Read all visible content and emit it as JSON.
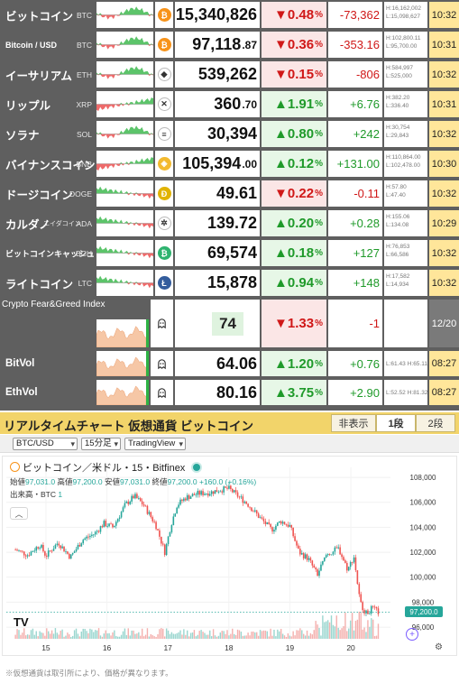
{
  "ticker": [
    {
      "name": "ビットコイン",
      "symbol": "BTC",
      "icon": "bitcoin-icon",
      "icon_color": "#f7931a",
      "icon_glyph": "₿",
      "price": "15,340,826",
      "price_dec": "",
      "dir": "down",
      "arrow": "▼",
      "pct": "0.48",
      "chg": "-73,362",
      "high": "H:16,162,002",
      "low": "L:15,098,627",
      "time": "10:32",
      "spark": "mixed"
    },
    {
      "name": "Bitcoin / USD",
      "symbol": "BTC",
      "icon": "bitcoin-icon",
      "icon_color": "#f7931a",
      "icon_glyph": "₿",
      "price": "97,118",
      "price_dec": ".87",
      "dir": "down",
      "arrow": "▼",
      "pct": "0.36",
      "chg": "-353.16",
      "high": "H:102,800.11",
      "low": "L:95,700.00",
      "time": "10:31",
      "spark": "mixed"
    },
    {
      "name": "イーサリアム",
      "symbol": "ETH",
      "icon": "ethereum-icon",
      "icon_color": "#ffffff",
      "icon_glyph": "◆",
      "price": "539,262",
      "price_dec": "",
      "dir": "down",
      "arrow": "▼",
      "pct": "0.15",
      "chg": "-806",
      "high": "H:584,997",
      "low": "L:525,000",
      "time": "10:32",
      "spark": "mixed"
    },
    {
      "name": "リップル",
      "symbol": "XRP",
      "icon": "xrp-icon",
      "icon_color": "#ffffff",
      "icon_glyph": "✕",
      "price": "360",
      "price_dec": ".70",
      "dir": "up",
      "arrow": "▲",
      "pct": "1.91",
      "chg": "+6.76",
      "high": "H:382.20",
      "low": "L:336.40",
      "time": "10:31",
      "spark": "up"
    },
    {
      "name": "ソラナ",
      "symbol": "SOL",
      "icon": "solana-icon",
      "icon_color": "#ffffff",
      "icon_glyph": "≡",
      "price": "30,394",
      "price_dec": "",
      "dir": "up",
      "arrow": "▲",
      "pct": "0.80",
      "chg": "+242",
      "high": "H:30,754",
      "low": "L:29,843",
      "time": "10:32",
      "spark": "mixed"
    },
    {
      "name": "バイナンスコイン",
      "symbol": "BNB",
      "icon": "bnb-icon",
      "icon_color": "#f3ba2f",
      "icon_glyph": "◈",
      "price": "105,394",
      "price_dec": ".00",
      "dir": "up",
      "arrow": "▲",
      "pct": "0.12",
      "chg": "+131.00",
      "high": "H:110,864.00",
      "low": "L:102,478.00",
      "time": "10:30",
      "spark": "up"
    },
    {
      "name": "ドージコイン",
      "symbol": "DOGE",
      "icon": "dogecoin-icon",
      "icon_color": "#e1b303",
      "icon_glyph": "Ð",
      "price": "49.61",
      "price_dec": "",
      "dir": "down",
      "arrow": "▼",
      "pct": "0.22",
      "chg": "-0.11",
      "high": "H:57.80",
      "low": "L:47.40",
      "time": "10:32",
      "spark": "down"
    },
    {
      "name": "カルダノ",
      "name_small": "エイダコイン",
      "symbol": "ADA",
      "icon": "cardano-icon",
      "icon_color": "#ffffff",
      "icon_glyph": "✲",
      "price": "139.72",
      "price_dec": "",
      "dir": "up",
      "arrow": "▲",
      "pct": "0.20",
      "chg": "+0.28",
      "high": "H:155.06",
      "low": "L:134.08",
      "time": "10:29",
      "spark": "down"
    },
    {
      "name": "ビットコインキャッシュ",
      "symbol": "BCH",
      "icon": "bitcoin-cash-icon",
      "icon_color": "#2fb36f",
      "icon_glyph": "₿",
      "price": "69,574",
      "price_dec": "",
      "dir": "up",
      "arrow": "▲",
      "pct": "0.18",
      "chg": "+127",
      "high": "H:76,853",
      "low": "L:66,586",
      "time": "10:32",
      "spark": "down"
    },
    {
      "name": "ライトコイン",
      "symbol": "LTC",
      "icon": "litecoin-icon",
      "icon_color": "#345d9d",
      "icon_glyph": "Ł",
      "price": "15,878",
      "price_dec": "",
      "dir": "up",
      "arrow": "▲",
      "pct": "0.94",
      "chg": "+148",
      "high": "H:17,582",
      "low": "L:14,934",
      "time": "10:32",
      "spark": "down"
    }
  ],
  "fear_greed": {
    "label": "Crypto Fear&Greed Index",
    "value": "74",
    "arrow": "▼",
    "pct": "1.33",
    "chg": "-1",
    "date": "12/20"
  },
  "vols": [
    {
      "label": "BitVol",
      "value": "64.06",
      "arrow": "▲",
      "pct": "1.20",
      "chg": "+0.76",
      "high": "H:65.11",
      "low": "L:61.43",
      "time": "08:27"
    },
    {
      "label": "EthVol",
      "value": "80.16",
      "arrow": "▲",
      "pct": "3.75",
      "chg": "+2.90",
      "high": "H:81.32",
      "low": "L:52.52",
      "time": "08:27"
    }
  ],
  "pct_unit": "%",
  "panel": {
    "title": "リアルタイムチャート 仮想通貨 ビットコイン",
    "btn_hide": "非表示",
    "btn_1": "1段",
    "btn_2": "2段",
    "sel_pair": "BTC/USD",
    "sel_interval": "15分足",
    "sel_provider": "TradingView"
  },
  "chart": {
    "legend_title": "ビットコイン／米ドル・15・Bitfinex",
    "ohlc_labels": {
      "o": "始値",
      "h": "高値",
      "l": "安値",
      "c": "終値"
    },
    "ohlc": {
      "o": "97,031.0",
      "h": "97,200.0",
      "l": "97,031.0",
      "c": "97,200.0",
      "chg": "+160.0 (+0.16%)"
    },
    "volume_label": "出来高・BTC",
    "volume_value": "1",
    "price_badge": "97,200.0",
    "tv_logo": "TV",
    "collapse": "︿",
    "plus": "+",
    "gear": "⚙"
  },
  "chart_data": {
    "type": "candlestick",
    "x_ticks": [
      "15",
      "16",
      "17",
      "18",
      "19",
      "20"
    ],
    "y_ticks": [
      96000,
      98000,
      100000,
      102000,
      104000,
      106000,
      108000
    ],
    "y_tick_labels": [
      "96,000",
      "98,000",
      "100,000",
      "102,000",
      "104,000",
      "106,000",
      "108,000"
    ],
    "ylim": [
      95500,
      108800
    ],
    "last_close": 97200,
    "path": [
      [
        "14.5",
        102200
      ],
      [
        "14.7",
        101800
      ],
      [
        "14.9",
        102600
      ],
      [
        "15.0",
        101700
      ],
      [
        "15.2",
        102800
      ],
      [
        "15.4",
        101600
      ],
      [
        "15.6",
        103000
      ],
      [
        "15.8",
        103500
      ],
      [
        "15.95",
        104300
      ],
      [
        "16.1",
        104000
      ],
      [
        "16.3",
        105800
      ],
      [
        "16.45",
        106500
      ],
      [
        "16.6",
        105800
      ],
      [
        "16.8",
        104200
      ],
      [
        "16.95",
        102000
      ],
      [
        "17.05",
        104200
      ],
      [
        "17.15",
        105800
      ],
      [
        "17.3",
        106400
      ],
      [
        "17.5",
        106700
      ],
      [
        "17.7",
        106800
      ],
      [
        "17.85",
        107000
      ],
      [
        "18.0",
        107100
      ],
      [
        "18.15",
        106500
      ],
      [
        "18.3",
        105900
      ],
      [
        "18.5",
        104800
      ],
      [
        "18.7",
        103800
      ],
      [
        "18.85",
        104500
      ],
      [
        "19.0",
        104100
      ],
      [
        "19.15",
        102000
      ],
      [
        "19.3",
        101500
      ],
      [
        "19.45",
        100200
      ],
      [
        "19.6",
        101800
      ],
      [
        "19.8",
        102300
      ],
      [
        "19.95",
        100600
      ],
      [
        "20.05",
        101700
      ],
      [
        "20.15",
        98000
      ],
      [
        "20.25",
        97100
      ],
      [
        "20.35",
        97500
      ],
      [
        "20.45",
        97200
      ]
    ]
  },
  "footer": "※仮想通貨は取引所により、価格が異なります。"
}
